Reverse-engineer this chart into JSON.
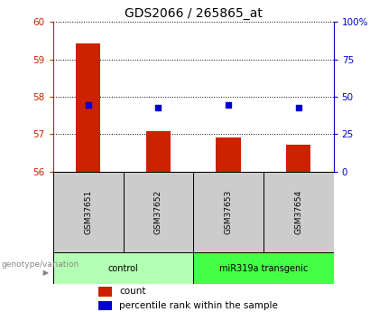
{
  "title": "GDS2066 / 265865_at",
  "samples": [
    "GSM37651",
    "GSM37652",
    "GSM37653",
    "GSM37654"
  ],
  "bar_values": [
    59.42,
    57.08,
    56.92,
    56.72
  ],
  "bar_base": 56.0,
  "bar_color": "#cc2200",
  "dot_values": [
    57.78,
    57.72,
    57.78,
    57.72
  ],
  "dot_color": "#0000cc",
  "ylim_left": [
    56,
    60
  ],
  "yticks_left": [
    56,
    57,
    58,
    59,
    60
  ],
  "ylim_right": [
    0,
    100
  ],
  "yticks_right": [
    0,
    25,
    50,
    75,
    100
  ],
  "ytick_labels_right": [
    "0",
    "25",
    "50",
    "75",
    "100%"
  ],
  "groups": [
    {
      "label": "control",
      "samples": [
        0,
        1
      ],
      "color": "#b3ffb3"
    },
    {
      "label": "miR319a transgenic",
      "samples": [
        2,
        3
      ],
      "color": "#44ff44"
    }
  ],
  "group_label": "genotype/variation",
  "legend_count_label": "count",
  "legend_pct_label": "percentile rank within the sample",
  "bar_width": 0.35,
  "bg_color": "#ffffff",
  "plot_bg": "#ffffff",
  "left_axis_color": "#cc2200",
  "right_axis_color": "#0000cc",
  "sample_box_color": "#cccccc",
  "title_fontsize": 10,
  "tick_fontsize": 7.5,
  "label_fontsize": 7
}
